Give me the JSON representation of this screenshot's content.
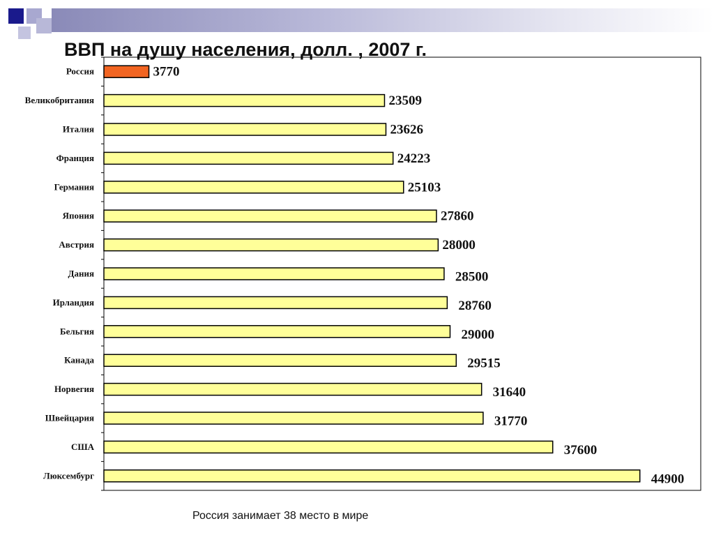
{
  "chart_data": {
    "type": "bar",
    "orientation": "horizontal",
    "title": "ВВП на душу населения, долл. , 2007 г.",
    "categories": [
      "Россия",
      "Великобритания",
      "Италия",
      "Франция",
      "Германия",
      "Япония",
      "Австрия",
      "Дания",
      "Ирландия",
      "Бельгия",
      "Канада",
      "Норвегия",
      "Швейцария",
      "США",
      "Люксембург"
    ],
    "values": [
      3770,
      23509,
      23626,
      24223,
      25103,
      27860,
      28000,
      28500,
      28760,
      29000,
      29515,
      31640,
      31770,
      37600,
      44900
    ],
    "data_labels": [
      "3770",
      "23509",
      "23626",
      "24223",
      "25103",
      "27860",
      "28000",
      "28500",
      "28760",
      "29000",
      "29515",
      "31640",
      "31770",
      "37600",
      "44900"
    ],
    "xlim": [
      0,
      50000
    ],
    "grid": false,
    "colors": {
      "highlight": "#f26522",
      "bar": "#ffff99",
      "border": "#000000"
    }
  },
  "footnote": "Россия занимает 38 место в мире",
  "decoration": {
    "accent_dark": "#1a1a8c",
    "accent_light": "#9a9ac8"
  }
}
